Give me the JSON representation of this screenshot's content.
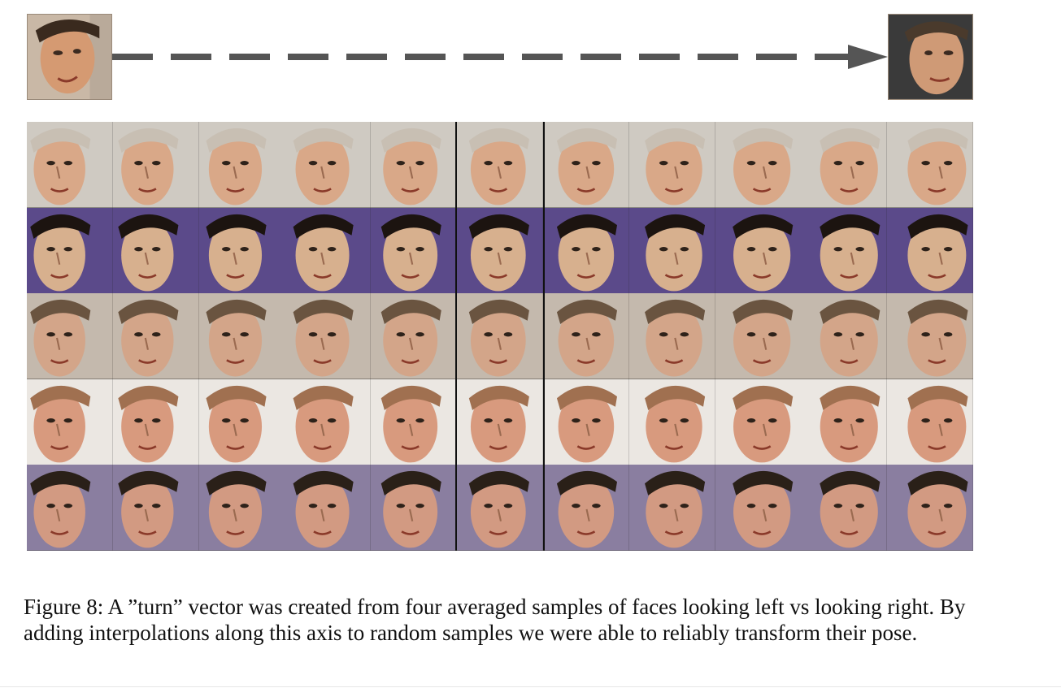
{
  "figure": {
    "caption": "Figure 8: A ”turn” vector was created from four averaged samples of faces looking left vs looking right. By adding interpolations along this axis to random samples we were able to reliably transform their pose."
  },
  "colors": {
    "arrow": "#555555",
    "divider": "#111111"
  },
  "top_faces": [
    {
      "name": "face-looking-left",
      "skin": "#d59a72",
      "hair": "#3a2a1e",
      "bg": "#c9b8a6"
    },
    {
      "name": "face-looking-right",
      "skin": "#cf9a76",
      "hair": "#4a3a2c",
      "bg": "#3a3a3a"
    }
  ],
  "grid": {
    "rows": [
      {
        "row": 1,
        "skin": "#d9a888",
        "hair": "#c8bfb3",
        "bg": "#cfcac2"
      },
      {
        "row": 2,
        "skin": "#d7b08e",
        "hair": "#1c1410",
        "bg": "#5b4a8a"
      },
      {
        "row": 3,
        "skin": "#d3a589",
        "hair": "#6a5440",
        "bg": "#c4b9ad"
      },
      {
        "row": 4,
        "skin": "#d89a7e",
        "hair": "#a07050",
        "bg": "#ebe7e2"
      },
      {
        "row": 5,
        "skin": "#d29a82",
        "hair": "#2a2018",
        "bg": "#8a7ea0"
      }
    ],
    "columns": 11
  }
}
